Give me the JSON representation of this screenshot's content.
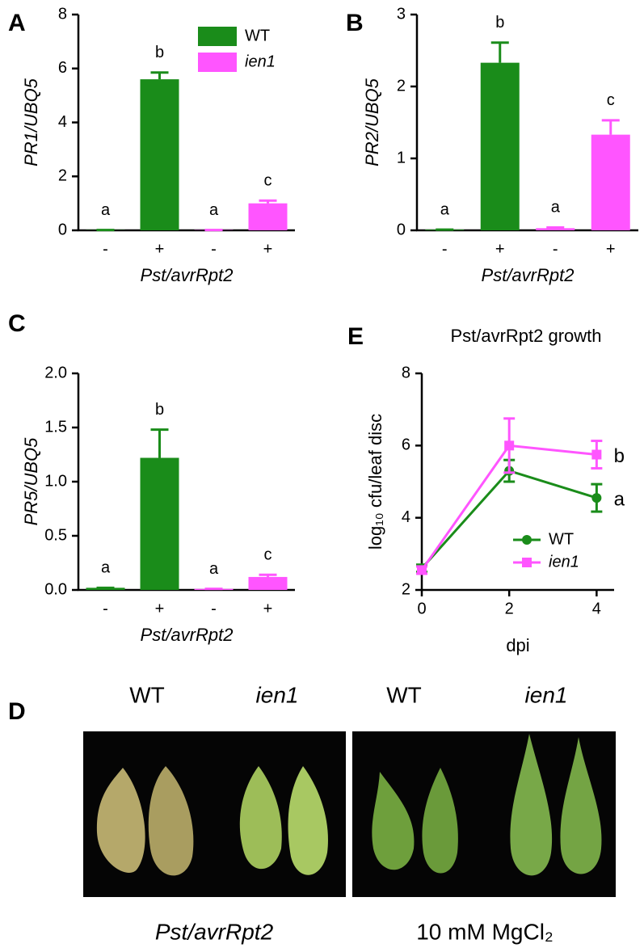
{
  "chart_data": [
    {
      "type": "bar",
      "panel_label": "A",
      "y_label": "PR1/UBQ5",
      "x_label": "Pst/avrRpt2",
      "categories": [
        "-",
        "+",
        "-",
        "+"
      ],
      "annotations": [
        "a",
        "b",
        "a",
        "c"
      ],
      "series": [
        {
          "name": "WT",
          "color": "#1a8c1a",
          "values": [
            0.01,
            5.6,
            null,
            null
          ],
          "errors": [
            0,
            0.25,
            null,
            null
          ]
        },
        {
          "name": "ien1",
          "color": "#ff55ff",
          "values": [
            null,
            null,
            0.01,
            1.0
          ],
          "errors": [
            null,
            null,
            0,
            0.1
          ]
        }
      ],
      "ylim": [
        0,
        8
      ],
      "yticks": [
        0,
        2,
        4,
        6,
        8
      ],
      "legend": true
    },
    {
      "type": "bar",
      "panel_label": "B",
      "y_label": "PR2/UBQ5",
      "x_label": "Pst/avrRpt2",
      "categories": [
        "-",
        "+",
        "-",
        "+"
      ],
      "annotations": [
        "a",
        "b",
        "a",
        "c"
      ],
      "series": [
        {
          "name": "WT",
          "color": "#1a8c1a",
          "values": [
            0.01,
            2.33,
            null,
            null
          ],
          "errors": [
            0,
            0.28,
            null,
            null
          ]
        },
        {
          "name": "ien1",
          "color": "#ff55ff",
          "values": [
            null,
            null,
            0.03,
            1.33
          ],
          "errors": [
            null,
            null,
            0.01,
            0.2
          ]
        }
      ],
      "ylim": [
        0,
        3
      ],
      "yticks": [
        0,
        1,
        2,
        3
      ],
      "legend": false
    },
    {
      "type": "bar",
      "panel_label": "C",
      "y_label": "PR5/UBQ5",
      "x_label": "Pst/avrRpt2",
      "categories": [
        "-",
        "+",
        "-",
        "+"
      ],
      "annotations": [
        "a",
        "b",
        "a",
        "c"
      ],
      "series": [
        {
          "name": "WT",
          "color": "#1a8c1a",
          "values": [
            0.02,
            1.22,
            null,
            null
          ],
          "errors": [
            0,
            0.26,
            null,
            null
          ]
        },
        {
          "name": "ien1",
          "color": "#ff55ff",
          "values": [
            null,
            null,
            0.01,
            0.12
          ],
          "errors": [
            null,
            null,
            0,
            0.02
          ]
        }
      ],
      "ylim": [
        0,
        2
      ],
      "yticks": [
        {
          "value": 0,
          "label": "0.0"
        },
        {
          "value": 0.5,
          "label": "0.5"
        },
        {
          "value": 1,
          "label": "1.0"
        },
        {
          "value": 1.5,
          "label": "1.5"
        },
        {
          "value": 2,
          "label": "2.0"
        }
      ],
      "legend": false
    },
    {
      "type": "line",
      "panel_label": "E",
      "title": "Pst/avrRpt2 growth",
      "y_label": "log₁₀ cfu/leaf disc",
      "x_label": "dpi",
      "x": [
        0,
        2,
        4
      ],
      "series": [
        {
          "name": "WT",
          "color": "#1a8c1a",
          "marker": "circle",
          "values": [
            2.6,
            5.3,
            4.55
          ],
          "errors": [
            0.1,
            0.3,
            0.38
          ],
          "annotation": "a"
        },
        {
          "name": "ien1",
          "color": "#ff55ff",
          "marker": "square",
          "values": [
            2.55,
            6.0,
            5.75
          ],
          "errors": [
            0.1,
            0.75,
            0.38
          ],
          "annotation": "b"
        }
      ],
      "xlim": [
        0,
        4.4
      ],
      "xticks": [
        0,
        2,
        4
      ],
      "ylim": [
        2,
        8
      ],
      "yticks": [
        2,
        4,
        6,
        8
      ],
      "legend": true
    }
  ],
  "photo": {
    "panel_label": "D",
    "columns": [
      "WT",
      "ien1",
      "WT",
      "ien1"
    ],
    "captions": [
      "Pst/avrRpt2",
      "10 mM MgCl₂"
    ]
  }
}
